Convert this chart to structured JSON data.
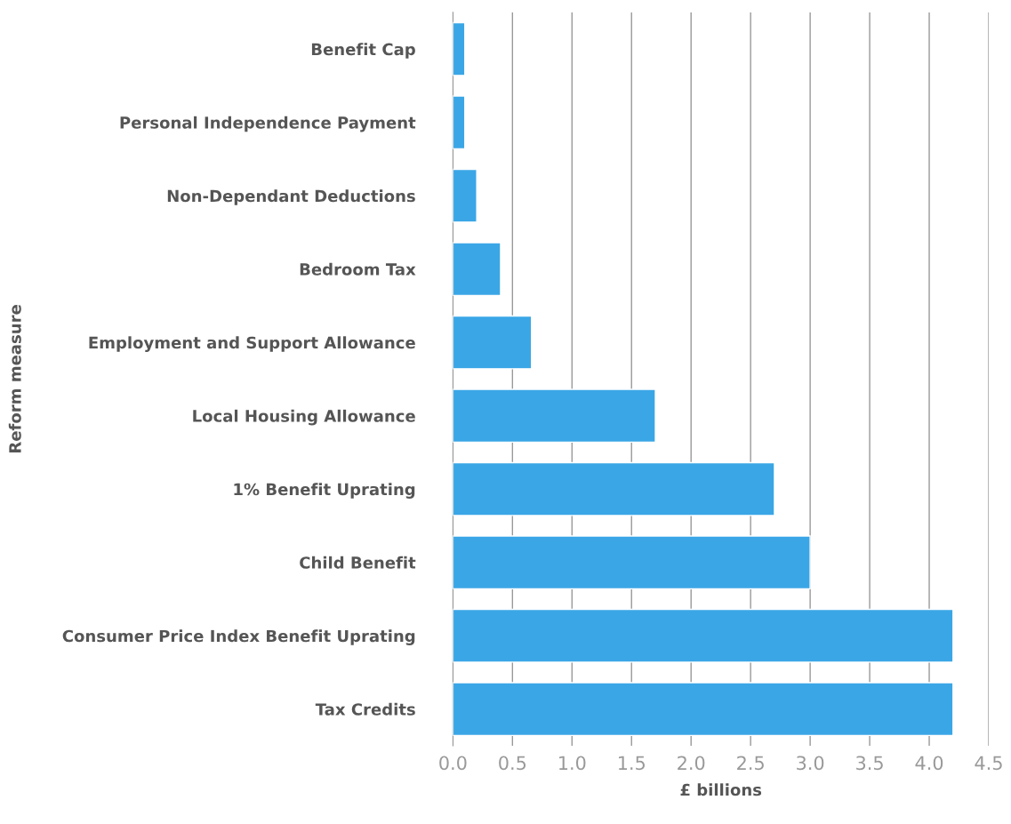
{
  "chart_data": {
    "type": "bar",
    "orientation": "horizontal",
    "xlabel": "£ billions",
    "ylabel": "Reform measure",
    "categories": [
      "Benefit Cap",
      "Personal Independence Payment",
      "Non-Dependant Deductions",
      "Bedroom Tax",
      "Employment and Support Allowance",
      "Local Housing Allowance",
      "1% Benefit Uprating",
      "Child Benefit",
      "Consumer Price Index Benefit Uprating",
      "Tax Credits"
    ],
    "values": [
      0.1,
      0.1,
      0.2,
      0.4,
      0.66,
      1.7,
      2.7,
      3.0,
      4.2,
      4.2
    ],
    "color": "#3aa6e6",
    "xlim": [
      0,
      4.5
    ],
    "xticks": [
      {
        "value": 0,
        "label": "0.0"
      },
      0.5,
      {
        "value": 1,
        "label": "1.0"
      },
      1.5,
      {
        "value": 2,
        "label": "2.0"
      },
      2.5,
      {
        "value": 3,
        "label": "3.0"
      },
      3.5,
      {
        "value": 4,
        "label": "4.0"
      },
      4.5
    ],
    "grid": "x",
    "legend": false
  }
}
